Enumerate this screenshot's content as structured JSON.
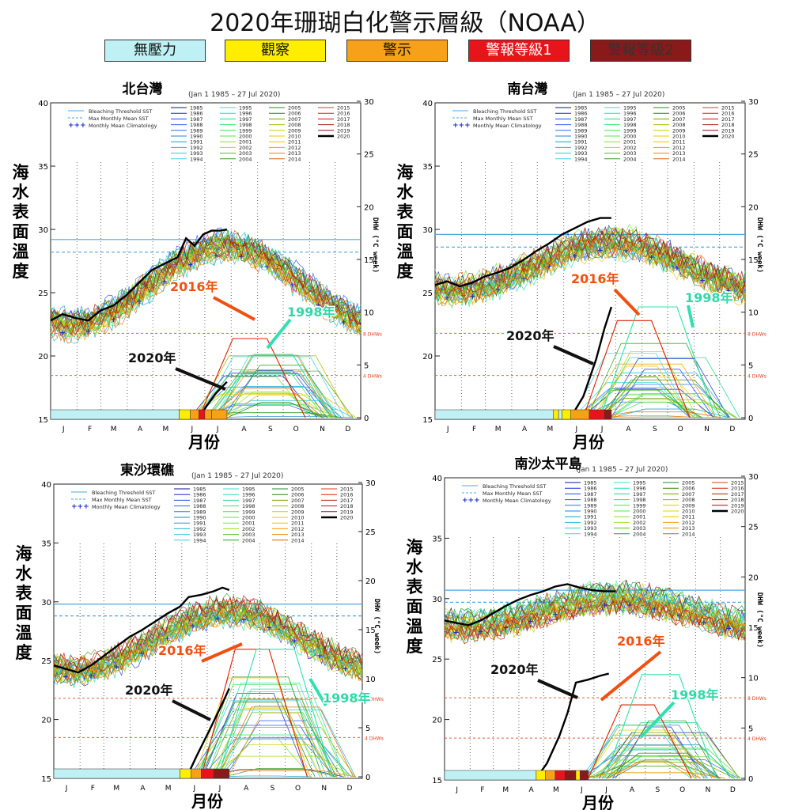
{
  "title": "2020年珊瑚白化警示層級（NOAA）",
  "alert_levels": [
    {
      "label": "無壓力",
      "color": "#bff0f4",
      "text": "#111111"
    },
    {
      "label": "觀察",
      "color": "#ffee00",
      "text": "#111111"
    },
    {
      "label": "警示",
      "color": "#f7a11a",
      "text": "#111111"
    },
    {
      "label": "警報等級1",
      "color": "#e8141c",
      "text": "#ffffff"
    },
    {
      "label": "警報等級2",
      "color": "#8a1a1a",
      "text": "#333333"
    }
  ],
  "common": {
    "date_range": "(Jan 1 1985 – 27 Jul 2020)",
    "months": [
      "J",
      "F",
      "M",
      "A",
      "M",
      "J",
      "J",
      "A",
      "S",
      "O",
      "N",
      "D"
    ],
    "sst_ticks": [
      15,
      20,
      25,
      30,
      35,
      40
    ],
    "dhw_ticks": [
      0,
      5,
      10,
      15,
      20,
      25,
      30
    ],
    "y_label_chars": [
      "海",
      "水",
      "表",
      "面",
      "溫",
      "度"
    ],
    "x_label": "月份",
    "dhw_axis_label": "DHW (°C week)",
    "dhw_8_label": "8 DHWs",
    "dhw_4_label": "4 DHWs",
    "legend_lines": [
      "Bleaching Threshold SST",
      "Max Monthly Mean SST",
      "Monthly Mean Climatology"
    ],
    "years": [
      "1985",
      "1986",
      "1987",
      "1988",
      "1989",
      "1990",
      "1991",
      "1992",
      "1993",
      "1994",
      "1995",
      "1996",
      "1997",
      "1998",
      "1999",
      "2000",
      "2001",
      "2002",
      "2003",
      "2004",
      "2005",
      "2006",
      "2007",
      "2008",
      "2009",
      "2010",
      "2011",
      "2012",
      "2013",
      "2014",
      "2015",
      "2016",
      "2017",
      "2018",
      "2019",
      "2020"
    ],
    "label_2016": "2016年",
    "label_1998": "1998年",
    "label_2020": "2020年"
  },
  "chart_data": [
    {
      "type": "line",
      "title": "北台灣",
      "ylim": [
        15,
        40
      ],
      "dhw_ylim": [
        0,
        30
      ],
      "bleaching_threshold": 29.2,
      "mmm": 28.2,
      "sst_2020": [
        [
          1,
          22.8
        ],
        [
          15,
          23.3
        ],
        [
          30,
          23.0
        ],
        [
          45,
          22.8
        ],
        [
          60,
          23.6
        ],
        [
          75,
          24.0
        ],
        [
          90,
          24.8
        ],
        [
          105,
          25.8
        ],
        [
          120,
          26.8
        ],
        [
          135,
          27.3
        ],
        [
          150,
          27.8
        ],
        [
          160,
          29.3
        ],
        [
          170,
          28.7
        ],
        [
          180,
          29.6
        ],
        [
          190,
          29.9
        ],
        [
          200,
          29.9
        ],
        [
          208,
          30.0
        ]
      ],
      "dhw_2020": [
        [
          175,
          0
        ],
        [
          185,
          1.2
        ],
        [
          195,
          2.3
        ],
        [
          208,
          3.4
        ]
      ],
      "dhw_2016_peak": 7.5,
      "dhw_1998_peak": 6.0,
      "alert_strip": [
        [
          1,
          152,
          "#bff0f4"
        ],
        [
          152,
          165,
          "#ffee00"
        ],
        [
          165,
          175,
          "#f7a11a"
        ],
        [
          175,
          182,
          "#e8141c"
        ],
        [
          182,
          190,
          "#f7a11a"
        ],
        [
          190,
          208,
          "#f7a11a"
        ]
      ]
    },
    {
      "type": "line",
      "title": "南台灣",
      "ylim": [
        15,
        40
      ],
      "dhw_ylim": [
        0,
        30
      ],
      "bleaching_threshold": 29.6,
      "mmm": 28.6,
      "sst_2020": [
        [
          1,
          25.6
        ],
        [
          15,
          25.9
        ],
        [
          30,
          25.5
        ],
        [
          45,
          25.8
        ],
        [
          60,
          26.3
        ],
        [
          75,
          26.6
        ],
        [
          90,
          27.0
        ],
        [
          105,
          27.6
        ],
        [
          120,
          28.3
        ],
        [
          135,
          28.9
        ],
        [
          150,
          29.6
        ],
        [
          165,
          30.1
        ],
        [
          180,
          30.6
        ],
        [
          195,
          30.9
        ],
        [
          208,
          30.9
        ]
      ],
      "dhw_2020": [
        [
          160,
          0
        ],
        [
          175,
          2.0
        ],
        [
          190,
          5.5
        ],
        [
          200,
          8.5
        ],
        [
          208,
          10.5
        ]
      ],
      "dhw_2016_peak": 9.2,
      "dhw_1998_peak": 10.5,
      "alert_strip": [
        [
          1,
          140,
          "#bff0f4"
        ],
        [
          140,
          146,
          "#ffee00"
        ],
        [
          146,
          150,
          "#bff0f4"
        ],
        [
          150,
          160,
          "#ffee00"
        ],
        [
          160,
          182,
          "#f7a11a"
        ],
        [
          182,
          200,
          "#e8141c"
        ],
        [
          200,
          208,
          "#8a1a1a"
        ]
      ]
    },
    {
      "type": "line",
      "title": "東沙環礁",
      "ylim": [
        15,
        40
      ],
      "dhw_ylim": [
        0,
        30
      ],
      "bleaching_threshold": 29.8,
      "mmm": 28.8,
      "sst_2020": [
        [
          1,
          24.6
        ],
        [
          15,
          24.3
        ],
        [
          30,
          24.0
        ],
        [
          45,
          24.6
        ],
        [
          60,
          25.4
        ],
        [
          75,
          26.2
        ],
        [
          90,
          27.0
        ],
        [
          105,
          27.6
        ],
        [
          120,
          28.3
        ],
        [
          135,
          29.0
        ],
        [
          150,
          29.6
        ],
        [
          160,
          30.4
        ],
        [
          175,
          30.6
        ],
        [
          190,
          30.9
        ],
        [
          200,
          31.2
        ],
        [
          208,
          31.0
        ]
      ],
      "dhw_2020": [
        [
          158,
          0
        ],
        [
          170,
          2.2
        ],
        [
          185,
          4.8
        ],
        [
          200,
          7.5
        ],
        [
          208,
          9.0
        ]
      ],
      "dhw_2016_peak": 13.0,
      "dhw_1998_peak": 13.0,
      "alert_strip": [
        [
          1,
          150,
          "#bff0f4"
        ],
        [
          150,
          163,
          "#ffee00"
        ],
        [
          163,
          175,
          "#f7a11a"
        ],
        [
          175,
          190,
          "#e8141c"
        ],
        [
          190,
          208,
          "#8a1a1a"
        ]
      ]
    },
    {
      "type": "line",
      "title": "南沙太平島",
      "ylim": [
        15,
        40
      ],
      "dhw_ylim": [
        0,
        30
      ],
      "bleaching_threshold": 30.7,
      "mmm": 29.7,
      "sst_2020": [
        [
          1,
          28.2
        ],
        [
          15,
          28.0
        ],
        [
          30,
          27.8
        ],
        [
          45,
          28.2
        ],
        [
          60,
          28.8
        ],
        [
          75,
          29.4
        ],
        [
          90,
          29.9
        ],
        [
          105,
          30.3
        ],
        [
          120,
          30.6
        ],
        [
          135,
          31.0
        ],
        [
          150,
          31.2
        ],
        [
          165,
          30.9
        ],
        [
          180,
          30.7
        ],
        [
          195,
          30.6
        ],
        [
          208,
          30.6
        ]
      ],
      "dhw_2020": [
        [
          112,
          0
        ],
        [
          125,
          1.5
        ],
        [
          140,
          4.2
        ],
        [
          150,
          6.5
        ],
        [
          160,
          9.5
        ],
        [
          175,
          9.8
        ],
        [
          190,
          10.2
        ],
        [
          200,
          10.4
        ]
      ],
      "dhw_2016_peak": 7.3,
      "dhw_1998_peak": 10.3,
      "alert_strip": [
        [
          1,
          112,
          "#bff0f4"
        ],
        [
          112,
          123,
          "#ffee00"
        ],
        [
          123,
          135,
          "#f7a11a"
        ],
        [
          135,
          147,
          "#e8141c"
        ],
        [
          147,
          160,
          "#8a1a1a"
        ],
        [
          160,
          165,
          "#ffee00"
        ],
        [
          165,
          175,
          "#8a1a1a"
        ]
      ]
    }
  ]
}
